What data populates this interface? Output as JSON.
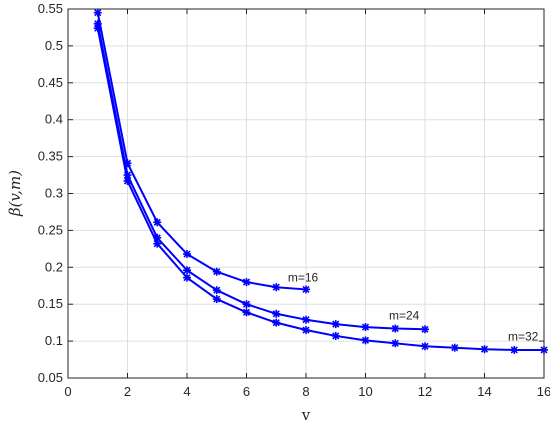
{
  "chart_data": {
    "type": "line",
    "title": "",
    "xlabel": "v",
    "ylabel": "β(v,m)",
    "xlim": [
      0,
      16
    ],
    "ylim": [
      0.05,
      0.55
    ],
    "xticks": [
      0,
      2,
      4,
      6,
      8,
      10,
      12,
      14,
      16
    ],
    "yticks": [
      0.05,
      0.1,
      0.15,
      0.2,
      0.25,
      0.3,
      0.35,
      0.4,
      0.45,
      0.5,
      0.55
    ],
    "grid": true,
    "line_color": "#0000ff",
    "marker": "asterisk",
    "series": [
      {
        "name": "m=16",
        "x": [
          1,
          2,
          3,
          4,
          5,
          6,
          7,
          8
        ],
        "y": [
          0.545,
          0.341,
          0.261,
          0.218,
          0.194,
          0.18,
          0.173,
          0.17
        ]
      },
      {
        "name": "m=24",
        "x": [
          1,
          2,
          3,
          4,
          5,
          6,
          7,
          8,
          9,
          10,
          11,
          12
        ],
        "y": [
          0.53,
          0.325,
          0.24,
          0.196,
          0.169,
          0.15,
          0.137,
          0.129,
          0.123,
          0.119,
          0.117,
          0.116
        ]
      },
      {
        "name": "m=32",
        "x": [
          1,
          2,
          3,
          4,
          5,
          6,
          7,
          8,
          9,
          10,
          11,
          12,
          13,
          14,
          15,
          16
        ],
        "y": [
          0.524,
          0.317,
          0.232,
          0.186,
          0.157,
          0.139,
          0.125,
          0.115,
          0.107,
          0.101,
          0.097,
          0.093,
          0.091,
          0.089,
          0.088,
          0.088
        ]
      }
    ],
    "annotations": [
      {
        "text": "m=16",
        "x": 7.9,
        "y": 0.181
      },
      {
        "text": "m=24",
        "x": 11.3,
        "y": 0.129
      },
      {
        "text": "m=32",
        "x": 15.3,
        "y": 0.101
      }
    ]
  }
}
